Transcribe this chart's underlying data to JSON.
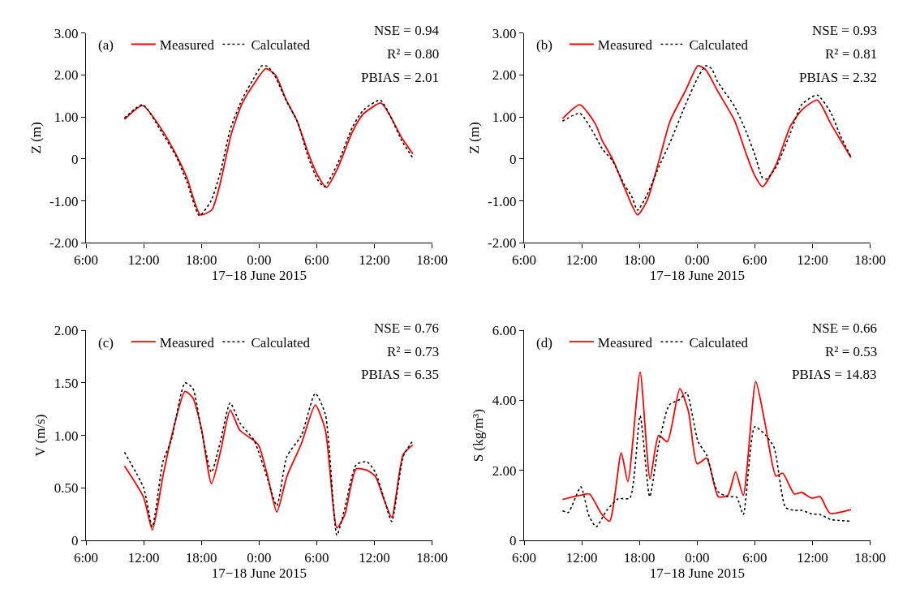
{
  "chart_data": [
    {
      "type": "line",
      "xlabel": "17−18 June 2015",
      "ylabel": "Z (m)",
      "legend": "top",
      "grid": false,
      "marker": "none",
      "annotations": [
        "(a)",
        "NSE = 0.94",
        "R² = 0.80",
        "PBIAS = 2.01"
      ],
      "xlim": [
        "2015-06-17T06:00",
        "2015-06-18T18:00"
      ],
      "xticks": [
        {
          "value": "2015-06-17T06:00",
          "label": "6:00"
        },
        {
          "value": "2015-06-17T12:00",
          "label": "12:00"
        },
        {
          "value": "2015-06-17T18:00",
          "label": "18:00"
        },
        {
          "value": "2015-06-18T00:00",
          "label": "0:00"
        },
        {
          "value": "2015-06-18T06:00",
          "label": "6:00"
        },
        {
          "value": "2015-06-18T12:00",
          "label": "12:00"
        },
        {
          "value": "2015-06-18T18:00",
          "label": "18:00"
        }
      ],
      "ylim": [
        -2,
        3
      ],
      "yticks": [
        {
          "value": -2,
          "label": "-2.00"
        },
        {
          "value": -1,
          "label": "-1.00"
        },
        0,
        {
          "value": 1,
          "label": "1.00"
        },
        {
          "value": 2,
          "label": "2.00"
        },
        {
          "value": 3,
          "label": "3.00"
        }
      ],
      "series": [
        {
          "name": "Measured",
          "color": "#ff0000",
          "line_style": "solid",
          "x": [
            "2015-06-17T10:00",
            "2015-06-17T11:54",
            "2015-06-17T13:42",
            "2015-06-17T15:24",
            "2015-06-17T16:30",
            "2015-06-17T17:54",
            "2015-06-17T19:06",
            "2015-06-17T19:54",
            "2015-06-17T21:06",
            "2015-06-17T22:12",
            "2015-06-17T23:24",
            "2015-06-18T00:42",
            "2015-06-18T01:42",
            "2015-06-18T02:48",
            "2015-06-18T04:00",
            "2015-06-18T05:06",
            "2015-06-18T06:06",
            "2015-06-18T07:00",
            "2015-06-18T08:12",
            "2015-06-18T09:42",
            "2015-06-18T10:48",
            "2015-06-18T12:42",
            "2015-06-18T13:42",
            "2015-06-18T14:48",
            "2015-06-18T16:00"
          ],
          "values": [
            0.94,
            1.27,
            0.76,
            0.09,
            -0.45,
            -1.33,
            -1.21,
            -0.64,
            0.58,
            1.3,
            1.76,
            2.15,
            2.0,
            1.42,
            0.88,
            0.15,
            -0.39,
            -0.68,
            -0.21,
            0.64,
            1.06,
            1.33,
            1.0,
            0.52,
            0.12
          ]
        },
        {
          "name": "Calculated",
          "color": "#000000",
          "line_style": "dotted",
          "x": [
            "2015-06-17T10:00",
            "2015-06-17T11:54",
            "2015-06-17T13:42",
            "2015-06-17T15:24",
            "2015-06-17T16:30",
            "2015-06-17T17:48",
            "2015-06-17T19:00",
            "2015-06-17T20:00",
            "2015-06-17T21:00",
            "2015-06-17T22:12",
            "2015-06-17T23:24",
            "2015-06-18T00:18",
            "2015-06-18T00:54",
            "2015-06-18T01:42",
            "2015-06-18T02:48",
            "2015-06-18T04:00",
            "2015-06-18T05:06",
            "2015-06-18T06:06",
            "2015-06-18T06:48",
            "2015-06-18T08:12",
            "2015-06-18T09:42",
            "2015-06-18T10:48",
            "2015-06-18T12:36",
            "2015-06-18T13:42",
            "2015-06-18T14:48",
            "2015-06-18T16:00"
          ],
          "values": [
            0.97,
            1.29,
            0.7,
            0.05,
            -0.55,
            -1.35,
            -1.0,
            -0.3,
            0.7,
            1.4,
            1.9,
            2.22,
            2.2,
            1.95,
            1.4,
            0.88,
            0.05,
            -0.5,
            -0.66,
            -0.1,
            0.75,
            1.15,
            1.4,
            1.0,
            0.45,
            0.02
          ]
        }
      ]
    },
    {
      "type": "line",
      "xlabel": "17−18 June 2015",
      "ylabel": "Z (m)",
      "legend": "top",
      "grid": false,
      "marker": "none",
      "annotations": [
        "(b)",
        "NSE = 0.93",
        "R² = 0.81",
        "PBIAS = 2.32"
      ],
      "xlim": [
        "2015-06-17T06:00",
        "2015-06-18T18:00"
      ],
      "xticks": [
        {
          "value": "2015-06-17T06:00",
          "label": "6:00"
        },
        {
          "value": "2015-06-17T12:00",
          "label": "12:00"
        },
        {
          "value": "2015-06-17T18:00",
          "label": "18:00"
        },
        {
          "value": "2015-06-18T00:00",
          "label": "0:00"
        },
        {
          "value": "2015-06-18T06:00",
          "label": "6:00"
        },
        {
          "value": "2015-06-18T12:00",
          "label": "12:00"
        },
        {
          "value": "2015-06-18T18:00",
          "label": "18:00"
        }
      ],
      "ylim": [
        -2,
        3
      ],
      "yticks": [
        {
          "value": -2,
          "label": "-2.00"
        },
        {
          "value": -1,
          "label": "-1.00"
        },
        0,
        {
          "value": 1,
          "label": "1.00"
        },
        {
          "value": 2,
          "label": "2.00"
        },
        {
          "value": 3,
          "label": "3.00"
        }
      ],
      "series": [
        {
          "name": "Measured",
          "color": "#ff0000",
          "line_style": "solid",
          "x": [
            "2015-06-17T10:00",
            "2015-06-17T11:48",
            "2015-06-17T13:24",
            "2015-06-17T14:06",
            "2015-06-17T15:12",
            "2015-06-17T16:24",
            "2015-06-17T17:48",
            "2015-06-17T18:48",
            "2015-06-17T20:00",
            "2015-06-17T21:12",
            "2015-06-17T22:48",
            "2015-06-18T00:06",
            "2015-06-18T00:54",
            "2015-06-18T02:06",
            "2015-06-18T03:54",
            "2015-06-18T05:06",
            "2015-06-18T06:00",
            "2015-06-18T06:48",
            "2015-06-18T08:12",
            "2015-06-18T09:42",
            "2015-06-18T10:54",
            "2015-06-18T12:30",
            "2015-06-18T13:54",
            "2015-06-18T14:54",
            "2015-06-18T16:00"
          ],
          "values": [
            0.96,
            1.29,
            0.84,
            0.45,
            0,
            -0.66,
            -1.33,
            -0.99,
            -0.07,
            0.91,
            1.63,
            2.22,
            2.12,
            1.63,
            0.91,
            0.12,
            -0.4,
            -0.66,
            -0.14,
            0.78,
            1.17,
            1.4,
            0.84,
            0.45,
            0.03
          ]
        },
        {
          "name": "Calculated",
          "color": "#000000",
          "line_style": "dotted",
          "x": [
            "2015-06-17T10:00",
            "2015-06-17T11:48",
            "2015-06-17T13:24",
            "2015-06-17T14:06",
            "2015-06-17T15:12",
            "2015-06-17T16:24",
            "2015-06-17T17:12",
            "2015-06-17T17:48",
            "2015-06-17T18:48",
            "2015-06-17T20:00",
            "2015-06-17T21:12",
            "2015-06-17T22:48",
            "2015-06-18T00:06",
            "2015-06-18T00:54",
            "2015-06-18T01:30",
            "2015-06-18T02:06",
            "2015-06-18T03:54",
            "2015-06-18T05:06",
            "2015-06-18T06:00",
            "2015-06-18T06:48",
            "2015-06-18T07:12",
            "2015-06-18T08:12",
            "2015-06-18T09:42",
            "2015-06-18T10:54",
            "2015-06-18T12:30",
            "2015-06-18T13:54",
            "2015-06-18T14:54",
            "2015-06-18T16:00"
          ],
          "values": [
            0.9,
            1.08,
            0.55,
            0.25,
            -0.05,
            -0.6,
            -0.9,
            -1.22,
            -0.85,
            -0.2,
            0.4,
            1.3,
            1.95,
            2.22,
            2.15,
            1.85,
            1.25,
            0.65,
            0.1,
            -0.45,
            -0.48,
            -0.2,
            0.62,
            1.3,
            1.52,
            1.1,
            0.55,
            0.05
          ]
        }
      ]
    },
    {
      "type": "line",
      "xlabel": "17−18 June 2015",
      "ylabel": "V (m/s)",
      "legend": "top",
      "grid": false,
      "marker": "none",
      "annotations": [
        "(c)",
        "NSE = 0.76",
        "R² = 0.73",
        "PBIAS = 6.35"
      ],
      "xlim": [
        "2015-06-17T06:00",
        "2015-06-18T18:00"
      ],
      "xticks": [
        {
          "value": "2015-06-17T06:00",
          "label": "6:00"
        },
        {
          "value": "2015-06-17T12:00",
          "label": "12:00"
        },
        {
          "value": "2015-06-17T18:00",
          "label": "18:00"
        },
        {
          "value": "2015-06-18T00:00",
          "label": "0:00"
        },
        {
          "value": "2015-06-18T06:00",
          "label": "6:00"
        },
        {
          "value": "2015-06-18T12:00",
          "label": "12:00"
        },
        {
          "value": "2015-06-18T18:00",
          "label": "18:00"
        }
      ],
      "ylim": [
        0,
        2
      ],
      "yticks": [
        0,
        {
          "value": 0.5,
          "label": "0.50"
        },
        {
          "value": 1,
          "label": "1.00"
        },
        {
          "value": 1.5,
          "label": "1.50"
        },
        {
          "value": 2,
          "label": "2.00"
        }
      ],
      "series": [
        {
          "name": "Measured",
          "color": "#ff0000",
          "line_style": "solid",
          "x": [
            "2015-06-17T10:00",
            "2015-06-17T12:00",
            "2015-06-17T12:54",
            "2015-06-17T14:00",
            "2015-06-17T14:51",
            "2015-06-17T16:18",
            "2015-06-17T17:06",
            "2015-06-17T18:00",
            "2015-06-17T19:03",
            "2015-06-17T20:00",
            "2015-06-17T21:00",
            "2015-06-17T22:00",
            "2015-06-17T23:30",
            "2015-06-18T00:00",
            "2015-06-18T00:54",
            "2015-06-18T01:51",
            "2015-06-18T02:54",
            "2015-06-18T04:24",
            "2015-06-18T05:51",
            "2015-06-18T06:54",
            "2015-06-18T08:06",
            "2015-06-18T08:54",
            "2015-06-18T10:06",
            "2015-06-18T11:12",
            "2015-06-18T12:06",
            "2015-06-18T13:00",
            "2015-06-18T13:48",
            "2015-06-18T15:00",
            "2015-06-18T16:00"
          ],
          "values": [
            0.71,
            0.41,
            0.1,
            0.61,
            0.97,
            1.42,
            1.36,
            1.07,
            0.54,
            0.85,
            1.24,
            1.05,
            0.95,
            0.9,
            0.61,
            0.27,
            0.61,
            0.92,
            1.29,
            1.05,
            0.12,
            0.24,
            0.68,
            0.67,
            0.61,
            0.39,
            0.22,
            0.82,
            0.91
          ]
        },
        {
          "name": "Calculated",
          "color": "#000000",
          "line_style": "dotted",
          "x": [
            "2015-06-17T10:00",
            "2015-06-17T12:00",
            "2015-06-17T12:54",
            "2015-06-17T14:00",
            "2015-06-17T14:51",
            "2015-06-17T16:18",
            "2015-06-17T17:06",
            "2015-06-17T18:00",
            "2015-06-17T19:03",
            "2015-06-17T20:00",
            "2015-06-17T21:00",
            "2015-06-17T22:00",
            "2015-06-17T23:30",
            "2015-06-18T00:54",
            "2015-06-18T01:51",
            "2015-06-18T02:54",
            "2015-06-18T04:24",
            "2015-06-18T05:51",
            "2015-06-18T06:54",
            "2015-06-18T08:06",
            "2015-06-18T08:54",
            "2015-06-18T10:06",
            "2015-06-18T11:12",
            "2015-06-18T12:06",
            "2015-06-18T13:00",
            "2015-06-18T13:48",
            "2015-06-18T15:00",
            "2015-06-18T16:00"
          ],
          "values": [
            0.84,
            0.5,
            0.13,
            0.75,
            0.95,
            1.5,
            1.45,
            1.05,
            0.65,
            0.95,
            1.31,
            1.12,
            0.95,
            0.58,
            0.33,
            0.8,
            1.0,
            1.4,
            1.2,
            0.05,
            0.3,
            0.72,
            0.75,
            0.65,
            0.4,
            0.18,
            0.8,
            0.95
          ]
        }
      ]
    },
    {
      "type": "line",
      "xlabel": "17−18 June 2015",
      "ylabel": "S (kg/m³)",
      "legend": "top",
      "grid": false,
      "marker": "none",
      "annotations": [
        "(d)",
        "NSE = 0.66",
        "R² = 0.53",
        "PBIAS = 14.83"
      ],
      "xlim": [
        "2015-06-17T06:00",
        "2015-06-18T18:00"
      ],
      "xticks": [
        {
          "value": "2015-06-17T06:00",
          "label": "6:00"
        },
        {
          "value": "2015-06-17T12:00",
          "label": "12:00"
        },
        {
          "value": "2015-06-17T18:00",
          "label": "18:00"
        },
        {
          "value": "2015-06-18T00:00",
          "label": "0:00"
        },
        {
          "value": "2015-06-18T06:00",
          "label": "6:00"
        },
        {
          "value": "2015-06-18T12:00",
          "label": "12:00"
        },
        {
          "value": "2015-06-18T18:00",
          "label": "18:00"
        }
      ],
      "ylim": [
        0,
        6
      ],
      "yticks": [
        0,
        {
          "value": 2,
          "label": "2.00"
        },
        {
          "value": 4,
          "label": "4.00"
        },
        {
          "value": 6,
          "label": "6.00"
        }
      ],
      "series": [
        {
          "name": "Measured",
          "color": "#ff0000",
          "line_style": "solid",
          "x": [
            "2015-06-17T10:00",
            "2015-06-17T11:51",
            "2015-06-17T12:48",
            "2015-06-17T14:00",
            "2015-06-17T14:54",
            "2015-06-17T16:06",
            "2015-06-17T16:48",
            "2015-06-17T18:04",
            "2015-06-17T19:06",
            "2015-06-17T20:00",
            "2015-06-17T20:54",
            "2015-06-17T22:12",
            "2015-06-17T23:06",
            "2015-06-18T00:00",
            "2015-06-18T01:00",
            "2015-06-18T02:12",
            "2015-06-18T03:12",
            "2015-06-18T04:00",
            "2015-06-18T04:48",
            "2015-06-18T06:06",
            "2015-06-18T07:06",
            "2015-06-18T08:12",
            "2015-06-18T08:54",
            "2015-06-18T10:06",
            "2015-06-18T10:54",
            "2015-06-18T11:54",
            "2015-06-18T12:48",
            "2015-06-18T13:48",
            "2015-06-18T16:00"
          ],
          "values": [
            1.17,
            1.29,
            1.33,
            0.78,
            0.55,
            2.5,
            1.68,
            4.81,
            1.76,
            3.0,
            2.82,
            4.34,
            3.68,
            2.19,
            2.35,
            1.25,
            1.29,
            1.96,
            1.29,
            4.54,
            3.29,
            1.84,
            1.92,
            1.33,
            1.37,
            1.21,
            1.25,
            0.78,
            0.88
          ]
        },
        {
          "name": "Calculated",
          "color": "#000000",
          "line_style": "dotted",
          "x": [
            "2015-06-17T10:00",
            "2015-06-17T10:36",
            "2015-06-17T11:54",
            "2015-06-17T12:45",
            "2015-06-17T13:30",
            "2015-06-17T14:36",
            "2015-06-17T15:48",
            "2015-06-17T17:00",
            "2015-06-17T18:04",
            "2015-06-17T19:04",
            "2015-06-17T20:00",
            "2015-06-17T21:06",
            "2015-06-17T22:12",
            "2015-06-17T22:54",
            "2015-06-18T00:06",
            "2015-06-18T01:00",
            "2015-06-18T02:06",
            "2015-06-18T03:12",
            "2015-06-18T04:06",
            "2015-06-18T04:48",
            "2015-06-18T06:00",
            "2015-06-18T07:06",
            "2015-06-18T08:00",
            "2015-06-18T09:12",
            "2015-06-18T10:06",
            "2015-06-18T10:54",
            "2015-06-18T11:54",
            "2015-06-18T12:48",
            "2015-06-18T13:54",
            "2015-06-18T16:00"
          ],
          "values": [
            0.85,
            0.8,
            1.53,
            0.7,
            0.39,
            0.86,
            1.19,
            1.21,
            3.56,
            1.25,
            2.74,
            3.87,
            4.03,
            4.23,
            2.82,
            2.43,
            1.41,
            1.25,
            1.24,
            0.74,
            3.25,
            3.01,
            2.66,
            0.94,
            0.86,
            0.86,
            0.76,
            0.74,
            0.6,
            0.55
          ]
        }
      ]
    }
  ]
}
